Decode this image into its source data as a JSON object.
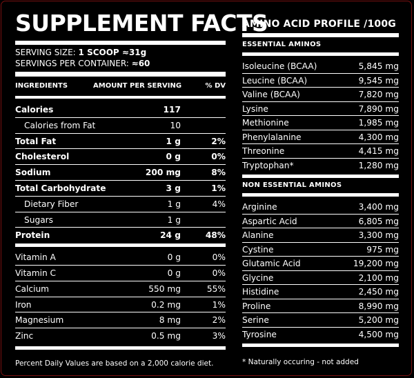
{
  "supplement": {
    "title": "SUPPLEMENT FACTS",
    "serving_size_label": "SERVING SIZE: ",
    "serving_size_value": "1 SCOOP ≈31g",
    "servings_per_container_label": "SERVINGS PER CONTAINER: ",
    "servings_per_container_value": "≈60",
    "headers": {
      "ingredients": "INGREDIENTS",
      "amount": "AMOUNT PER SERVING",
      "dv": "% DV"
    },
    "nutrients": [
      {
        "name": "Calories",
        "amount": "117",
        "dv": ""
      },
      {
        "name": "Calories from Fat",
        "amount": "10",
        "dv": ""
      },
      {
        "name": "Total Fat",
        "amount": "1 g",
        "dv": "2%"
      },
      {
        "name": "Cholesterol",
        "amount": "0 g",
        "dv": "0%"
      },
      {
        "name": "Sodium",
        "amount": "200 mg",
        "dv": "8%"
      },
      {
        "name": "Total Carbohydrate",
        "amount": "3 g",
        "dv": "1%"
      },
      {
        "name": "Dietary Fiber",
        "amount": "1 g",
        "dv": "4%"
      },
      {
        "name": "Sugars",
        "amount": "1 g",
        "dv": ""
      },
      {
        "name": "Protein",
        "amount": "24 g",
        "dv": "48%"
      }
    ],
    "minerals": [
      {
        "name": "Vitamin A",
        "amount": "0 g",
        "dv": "0%"
      },
      {
        "name": "Vitamin C",
        "amount": "0 g",
        "dv": "0%"
      },
      {
        "name": "Calcium",
        "amount": "550 mg",
        "dv": "55%"
      },
      {
        "name": "Iron",
        "amount": "0.2 mg",
        "dv": "1%"
      },
      {
        "name": "Magnesium",
        "amount": "8 mg",
        "dv": "2%"
      },
      {
        "name": "Zinc",
        "amount": "0.5 mg",
        "dv": "3%"
      }
    ],
    "footnote": "Percent Daily Values are based on a 2,000 calorie diet."
  },
  "amino": {
    "title": "AMINO ACID PROFILE /100G",
    "essential_header": "ESSENTIAL AMINOS",
    "essential": [
      {
        "name": "Isoleucine (BCAA)",
        "value": "5,845 mg"
      },
      {
        "name": "Leucine (BCAA)",
        "value": "9,545 mg"
      },
      {
        "name": "Valine (BCAA)",
        "value": "7,820 mg"
      },
      {
        "name": "Lysine",
        "value": "7,890 mg"
      },
      {
        "name": "Methionine",
        "value": "1,985 mg"
      },
      {
        "name": "Phenylalanine",
        "value": "4,300 mg"
      },
      {
        "name": "Threonine",
        "value": "4,415 mg"
      },
      {
        "name": "Tryptophan*",
        "value": "1,280 mg"
      }
    ],
    "non_essential_header": "NON ESSENTIAL AMINOS",
    "non_essential": [
      {
        "name": "Arginine",
        "value": "3,400 mg"
      },
      {
        "name": "Aspartic Acid",
        "value": "6,805 mg"
      },
      {
        "name": "Alanine",
        "value": "3,300 mg"
      },
      {
        "name": "Cystine",
        "value": "975 mg"
      },
      {
        "name": "Glutamic Acid",
        "value": "19,200 mg"
      },
      {
        "name": "Glycine",
        "value": "2,100 mg"
      },
      {
        "name": "Histidine",
        "value": "2,450 mg"
      },
      {
        "name": "Proline",
        "value": "8,990 mg"
      },
      {
        "name": "Serine",
        "value": "5,200 mg"
      },
      {
        "name": "Tyrosine",
        "value": "4,500 mg"
      }
    ],
    "note": "*  Naturally occuring - not added"
  }
}
